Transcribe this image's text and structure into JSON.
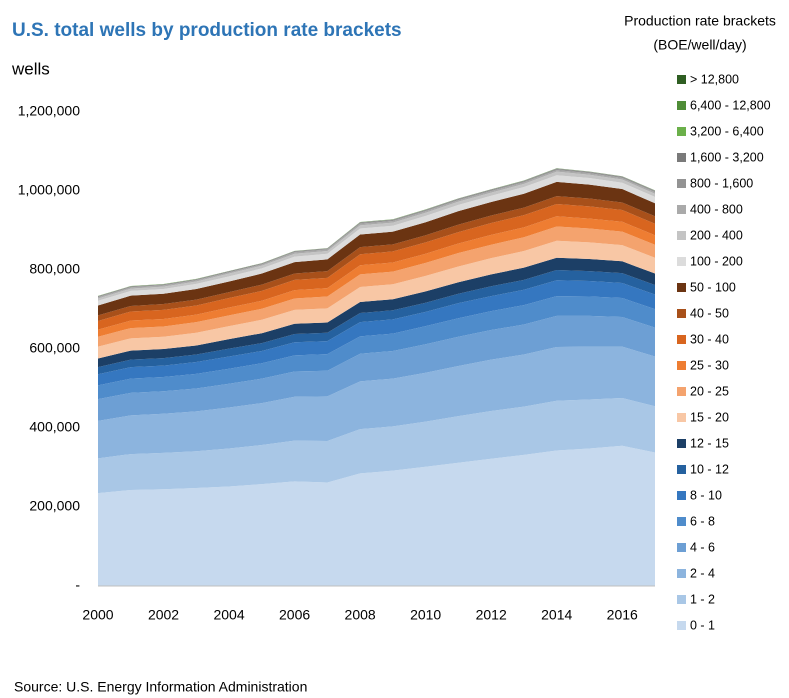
{
  "chart_data": {
    "type": "area",
    "stacked": true,
    "title": "U.S. total wells by production rate brackets",
    "y_label": "wells",
    "legend_title": [
      "Production rate brackets",
      "(BOE/well/day)"
    ],
    "source": "Source: U.S. Energy Information Administration",
    "x": [
      2000,
      2001,
      2002,
      2003,
      2004,
      2005,
      2006,
      2007,
      2008,
      2009,
      2010,
      2011,
      2012,
      2013,
      2014,
      2015,
      2016,
      2017
    ],
    "xlim": [
      2000,
      2017
    ],
    "xticks": [
      2000,
      2002,
      2004,
      2006,
      2008,
      2010,
      2012,
      2014,
      2016
    ],
    "ylim": [
      0,
      1200000
    ],
    "yticks": [
      {
        "value": 0,
        "label": "-"
      },
      {
        "value": 200000,
        "label": "200,000"
      },
      {
        "value": 400000,
        "label": "400,000"
      },
      {
        "value": 600000,
        "label": "600,000"
      },
      {
        "value": 800000,
        "label": "800,000"
      },
      {
        "value": 1000000,
        "label": "1,000,000"
      },
      {
        "value": 1200000,
        "label": "1,200,000"
      }
    ],
    "grid": false,
    "legend": "right",
    "series": [
      {
        "name": "0 - 1",
        "color": "#c6d9ee",
        "values": [
          235000,
          243000,
          245000,
          248000,
          252000,
          258000,
          265000,
          262000,
          285000,
          292000,
          302000,
          312000,
          322000,
          332000,
          343000,
          348000,
          355000,
          338000
        ]
      },
      {
        "name": "1 - 2",
        "color": "#a9c7e6",
        "values": [
          88000,
          91000,
          92000,
          93000,
          96000,
          99000,
          103000,
          105000,
          112000,
          112000,
          114000,
          118000,
          121000,
          122000,
          126000,
          124000,
          121000,
          117000
        ]
      },
      {
        "name": "2 - 4",
        "color": "#8cb4de",
        "values": [
          95000,
          98000,
          99000,
          101000,
          104000,
          106000,
          111000,
          113000,
          121000,
          121000,
          124000,
          127000,
          130000,
          132000,
          136000,
          134000,
          130000,
          126000
        ]
      },
      {
        "name": "4 - 6",
        "color": "#6d9fd4",
        "values": [
          55000,
          57000,
          57000,
          58000,
          60000,
          62000,
          64000,
          65000,
          70000,
          70000,
          72000,
          74000,
          75000,
          76000,
          79000,
          78000,
          75000,
          73000
        ]
      },
      {
        "name": "6 - 8",
        "color": "#4f8ccb",
        "values": [
          35000,
          36000,
          36000,
          37000,
          38000,
          39000,
          41000,
          42000,
          44000,
          44000,
          46000,
          47000,
          48000,
          49000,
          50000,
          49000,
          48000,
          47000
        ]
      },
      {
        "name": "8 - 10",
        "color": "#3577c0",
        "values": [
          28000,
          29000,
          29000,
          30000,
          31000,
          31000,
          33000,
          33000,
          36000,
          36000,
          36000,
          38000,
          38000,
          39000,
          40000,
          39000,
          38000,
          37000
        ]
      },
      {
        "name": "10 - 12",
        "color": "#25619f",
        "values": [
          18000,
          19000,
          19000,
          19000,
          20000,
          20000,
          21000,
          21000,
          23000,
          23000,
          23000,
          24000,
          25000,
          25000,
          26000,
          25000,
          25000,
          24000
        ]
      },
      {
        "name": "12 - 15",
        "color": "#1c3f66",
        "values": [
          22000,
          23000,
          23000,
          23000,
          24000,
          25000,
          26000,
          26000,
          28000,
          28000,
          29000,
          29000,
          30000,
          31000,
          31000,
          31000,
          30000,
          29000
        ]
      },
      {
        "name": "15 - 20",
        "color": "#f8c7a5",
        "values": [
          30000,
          31000,
          31000,
          32000,
          33000,
          34000,
          35000,
          36000,
          38000,
          38000,
          39000,
          40000,
          41000,
          42000,
          43000,
          42000,
          41000,
          40000
        ]
      },
      {
        "name": "20 - 25",
        "color": "#f4a36e",
        "values": [
          25000,
          26000,
          26000,
          27000,
          27000,
          28000,
          29000,
          30000,
          32000,
          32000,
          33000,
          34000,
          34000,
          35000,
          36000,
          35000,
          34000,
          33000
        ]
      },
      {
        "name": "25 - 30",
        "color": "#ee7d32",
        "values": [
          18000,
          19000,
          19000,
          19000,
          20000,
          20000,
          21000,
          21000,
          23000,
          23000,
          23000,
          24000,
          25000,
          25000,
          26000,
          25000,
          25000,
          24000
        ]
      },
      {
        "name": "30 - 40",
        "color": "#d8651f",
        "values": [
          22000,
          23000,
          23000,
          23000,
          24000,
          25000,
          26000,
          26000,
          28000,
          28000,
          29000,
          29000,
          30000,
          31000,
          31000,
          31000,
          30000,
          29000
        ]
      },
      {
        "name": "40 - 50",
        "color": "#a8501a",
        "values": [
          14000,
          14000,
          15000,
          15000,
          15000,
          16000,
          16000,
          17000,
          18000,
          18000,
          18000,
          19000,
          19000,
          19000,
          20000,
          20000,
          19000,
          19000
        ]
      },
      {
        "name": "50 - 100",
        "color": "#6b3412",
        "values": [
          25000,
          26000,
          26000,
          27000,
          27000,
          28000,
          29000,
          30000,
          32000,
          32000,
          33000,
          34000,
          34000,
          35000,
          36000,
          35000,
          34000,
          33000
        ]
      },
      {
        "name": "100 - 200",
        "color": "#dcdcdc",
        "values": [
          12000,
          12000,
          12000,
          13000,
          13000,
          13000,
          14000,
          14000,
          15000,
          15000,
          16000,
          16000,
          16000,
          17000,
          17000,
          17000,
          16000,
          16000
        ]
      },
      {
        "name": "200 - 400",
        "color": "#c4c4c4",
        "values": [
          6000,
          6000,
          6000,
          6000,
          7000,
          7000,
          7000,
          7000,
          8000,
          8000,
          8000,
          8000,
          8000,
          8000,
          9000,
          8000,
          8000,
          8000
        ]
      },
      {
        "name": "400 - 800",
        "color": "#aaaaaa",
        "values": [
          3000,
          3000,
          3000,
          3000,
          3000,
          3000,
          4000,
          4000,
          4000,
          4000,
          4000,
          4000,
          4000,
          4000,
          4000,
          4000,
          4000,
          4000
        ]
      },
      {
        "name": "800 - 1,600",
        "color": "#939393",
        "values": [
          2000,
          2000,
          2000,
          2000,
          2000,
          2000,
          2000,
          2000,
          3000,
          3000,
          3000,
          3000,
          3000,
          3000,
          3000,
          3000,
          3000,
          3000
        ]
      },
      {
        "name": "1,600 - 3,200",
        "color": "#7a7a7a",
        "values": [
          1000,
          1000,
          1000,
          1000,
          1000,
          1000,
          1000,
          1000,
          1000,
          1000,
          1000,
          1000,
          1000,
          1000,
          1000,
          1000,
          1000,
          1000
        ]
      },
      {
        "name": "3,200 - 6,400",
        "color": "#6bb04a",
        "values": [
          300,
          300,
          300,
          300,
          300,
          300,
          300,
          300,
          300,
          300,
          300,
          300,
          300,
          300,
          300,
          300,
          300,
          300
        ]
      },
      {
        "name": "6,400 - 12,800",
        "color": "#4f8d37",
        "values": [
          100,
          100,
          100,
          100,
          100,
          100,
          100,
          100,
          100,
          100,
          100,
          100,
          100,
          100,
          100,
          100,
          100,
          100
        ]
      },
      {
        "name": "> 12,800",
        "color": "#2f5e22",
        "values": [
          50,
          50,
          50,
          50,
          50,
          50,
          50,
          50,
          50,
          50,
          50,
          50,
          50,
          50,
          50,
          50,
          50,
          50
        ]
      }
    ]
  }
}
